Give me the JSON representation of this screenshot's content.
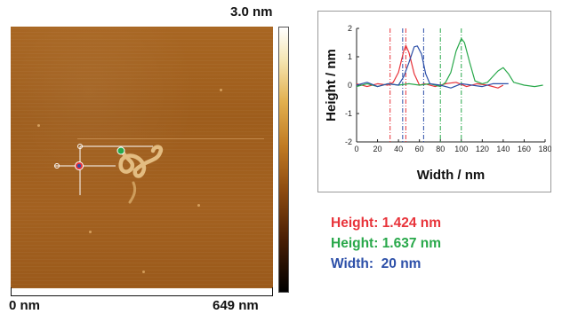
{
  "afm_image": {
    "colorbar_max_label": "3.0 nm",
    "scalebar_start_label": "0 nm",
    "scalebar_end_label": "649 nm"
  },
  "colors": {
    "red": "#e8333a",
    "green": "#28a84a",
    "blue": "#2c4fa8"
  },
  "chart_data": {
    "type": "line",
    "xlabel": "Width / nm",
    "ylabel": "Height / nm",
    "xlim": [
      0,
      180
    ],
    "ylim": [
      -2,
      2
    ],
    "xticks": [
      0,
      20,
      40,
      60,
      80,
      100,
      120,
      140,
      160,
      180
    ],
    "yticks": [
      -2,
      -1,
      0,
      1,
      2
    ],
    "grid": false,
    "series": [
      {
        "color": "#e8333a",
        "points": [
          [
            0,
            0.05
          ],
          [
            10,
            -0.05
          ],
          [
            20,
            0.05
          ],
          [
            30,
            0.0
          ],
          [
            35,
            0.1
          ],
          [
            40,
            0.45
          ],
          [
            45,
            1.2
          ],
          [
            47,
            1.4
          ],
          [
            50,
            1.15
          ],
          [
            55,
            0.4
          ],
          [
            60,
            0.0
          ],
          [
            65,
            0.05
          ],
          [
            75,
            -0.05
          ],
          [
            85,
            0.05
          ],
          [
            95,
            0.1
          ],
          [
            105,
            -0.05
          ],
          [
            115,
            0.05
          ],
          [
            125,
            0.0
          ],
          [
            135,
            -0.1
          ],
          [
            140,
            0.0
          ]
        ]
      },
      {
        "color": "#28a84a",
        "points": [
          [
            0,
            -0.05
          ],
          [
            10,
            0.05
          ],
          [
            20,
            -0.05
          ],
          [
            30,
            0.05
          ],
          [
            40,
            0.0
          ],
          [
            50,
            0.05
          ],
          [
            60,
            0.0
          ],
          [
            70,
            0.05
          ],
          [
            80,
            -0.05
          ],
          [
            85,
            0.1
          ],
          [
            90,
            0.45
          ],
          [
            95,
            1.2
          ],
          [
            100,
            1.64
          ],
          [
            103,
            1.5
          ],
          [
            108,
            0.8
          ],
          [
            113,
            0.15
          ],
          [
            120,
            0.05
          ],
          [
            125,
            0.1
          ],
          [
            130,
            0.3
          ],
          [
            135,
            0.5
          ],
          [
            140,
            0.62
          ],
          [
            145,
            0.4
          ],
          [
            150,
            0.1
          ],
          [
            160,
            0.0
          ],
          [
            170,
            -0.05
          ],
          [
            178,
            0.0
          ]
        ]
      },
      {
        "color": "#2c4fa8",
        "points": [
          [
            0,
            0.0
          ],
          [
            10,
            0.1
          ],
          [
            20,
            -0.05
          ],
          [
            30,
            0.05
          ],
          [
            40,
            0.0
          ],
          [
            45,
            0.3
          ],
          [
            50,
            0.8
          ],
          [
            55,
            1.35
          ],
          [
            58,
            1.38
          ],
          [
            62,
            1.1
          ],
          [
            66,
            0.4
          ],
          [
            70,
            0.05
          ],
          [
            80,
            0.0
          ],
          [
            90,
            -0.1
          ],
          [
            100,
            0.05
          ],
          [
            110,
            0.0
          ],
          [
            120,
            -0.05
          ],
          [
            130,
            0.05
          ],
          [
            140,
            0.05
          ],
          [
            145,
            0.05
          ]
        ]
      }
    ],
    "markers": [
      {
        "color": "#e8333a",
        "x": 32
      },
      {
        "color": "#e8333a",
        "x": 47
      },
      {
        "color": "#2c4fa8",
        "x": 44
      },
      {
        "color": "#2c4fa8",
        "x": 64
      },
      {
        "color": "#28a84a",
        "x": 80
      },
      {
        "color": "#28a84a",
        "x": 100
      }
    ]
  },
  "results": [
    {
      "label": "Height: ",
      "value": "1.424 nm"
    },
    {
      "label": "Height: ",
      "value": "1.637 nm"
    },
    {
      "label": "Width:  ",
      "value": "20 nm"
    }
  ]
}
